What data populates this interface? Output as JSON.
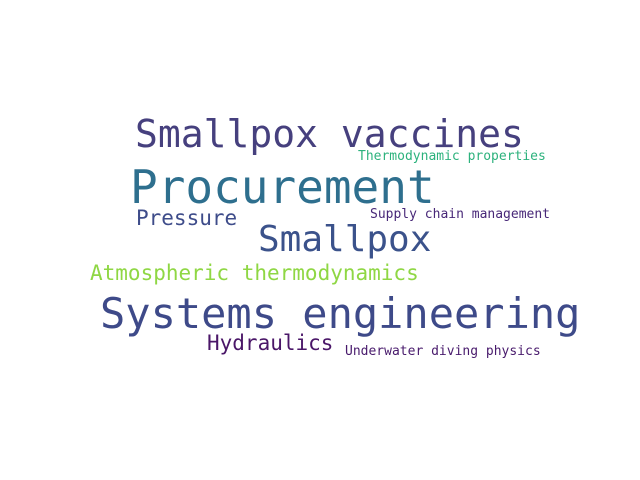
{
  "words": [
    {
      "text": "Smallpox vaccines",
      "color": "#46407e"
    },
    {
      "text": "Thermodynamic properties",
      "color": "#2db27d"
    },
    {
      "text": "Procurement",
      "color": "#2e6f8e"
    },
    {
      "text": "Pressure",
      "color": "#3e4c8a"
    },
    {
      "text": "Supply chain management",
      "color": "#482878"
    },
    {
      "text": "Smallpox",
      "color": "#3b528b"
    },
    {
      "text": "Atmospheric thermodynamics",
      "color": "#8fd744"
    },
    {
      "text": "Systems engineering",
      "color": "#3e4a89"
    },
    {
      "text": "Hydraulics",
      "color": "#4a1668"
    },
    {
      "text": "Underwater diving physics",
      "color": "#481a6c"
    }
  ]
}
